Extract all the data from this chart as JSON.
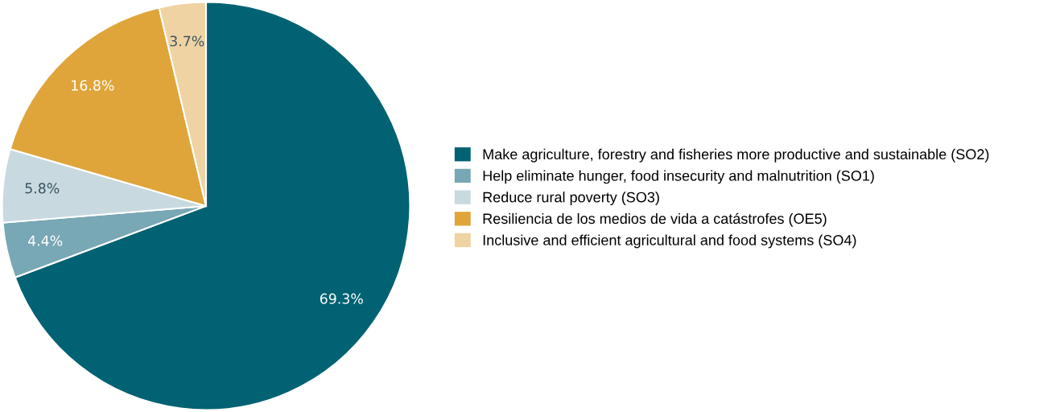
{
  "chart_data": {
    "type": "pie",
    "categories": [
      "Make agriculture, forestry and fisheries more productive and sustainable (SO2)",
      "Help eliminate hunger, food insecurity and malnutrition (SO1)",
      "Reduce rural poverty (SO3)",
      "Resiliencia de los medios de vida a catástrofes (OE5)",
      "Inclusive and efficient agricultural and food systems (SO4)"
    ],
    "values": [
      69.3,
      4.4,
      5.8,
      16.8,
      3.7
    ],
    "colors": [
      "#006272",
      "#78a7b5",
      "#c8dae0",
      "#dfa53a",
      "#f0d3a3"
    ],
    "value_labels": [
      "69.3%",
      "4.4%",
      "5.8%",
      "16.8%",
      "3.7%"
    ],
    "legend": "right"
  }
}
